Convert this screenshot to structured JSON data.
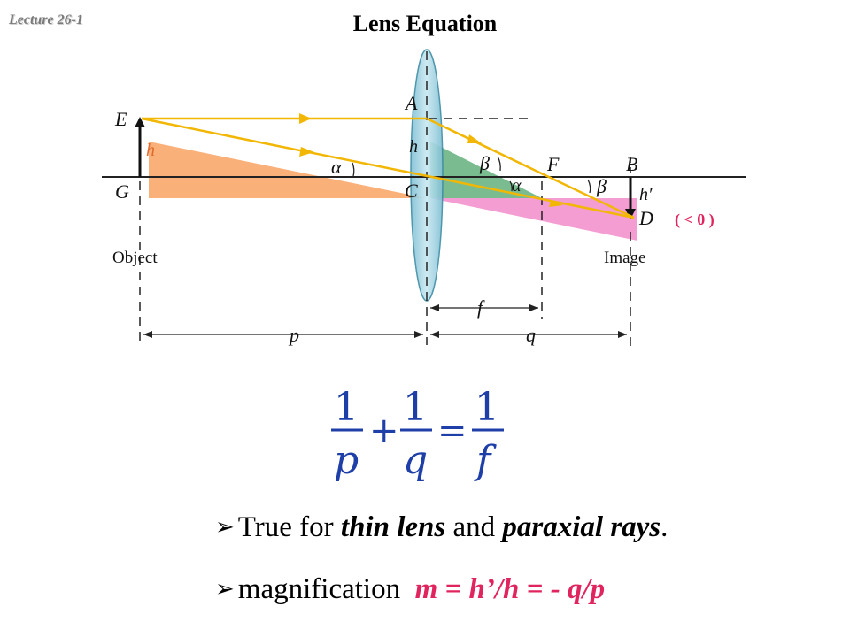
{
  "header": {
    "lecture": "Lecture 26-1",
    "title": "Lens Equation"
  },
  "diagram": {
    "labels": {
      "E": "E",
      "G": "G",
      "h": "h",
      "A": "A",
      "h_lens": "h",
      "C": "C",
      "alpha1": "α",
      "alpha2": "α",
      "beta1": "β",
      "beta2": "β",
      "F": "F",
      "B": "B",
      "h_prime": "h′",
      "D": "D",
      "object": "Object",
      "image": "Image",
      "f": "f",
      "p": "p",
      "q": "q"
    },
    "note": "( < 0 )",
    "colors": {
      "ray": "#f2b705",
      "object_triangle": "#f9a76a",
      "lens_triangle": "#4da56a",
      "image_triangle": "#f07cc3",
      "lens_fill": "#9fd0e0",
      "note": "#e0245e"
    }
  },
  "equation": {
    "one_a": "1",
    "den_a": "p",
    "plus": "+",
    "one_b": "1",
    "den_b": "q",
    "equals": "=",
    "one_c": "1",
    "den_c": "f",
    "color": "#1f3fa8"
  },
  "bullets": {
    "b1_pre": "True for ",
    "b1_em1": "thin lens",
    "b1_mid": " and ",
    "b1_em2": "paraxial rays",
    "b1_post": ".",
    "b2_pre": "magnification  ",
    "b2_formula": "m = h’/h = - q/p"
  }
}
